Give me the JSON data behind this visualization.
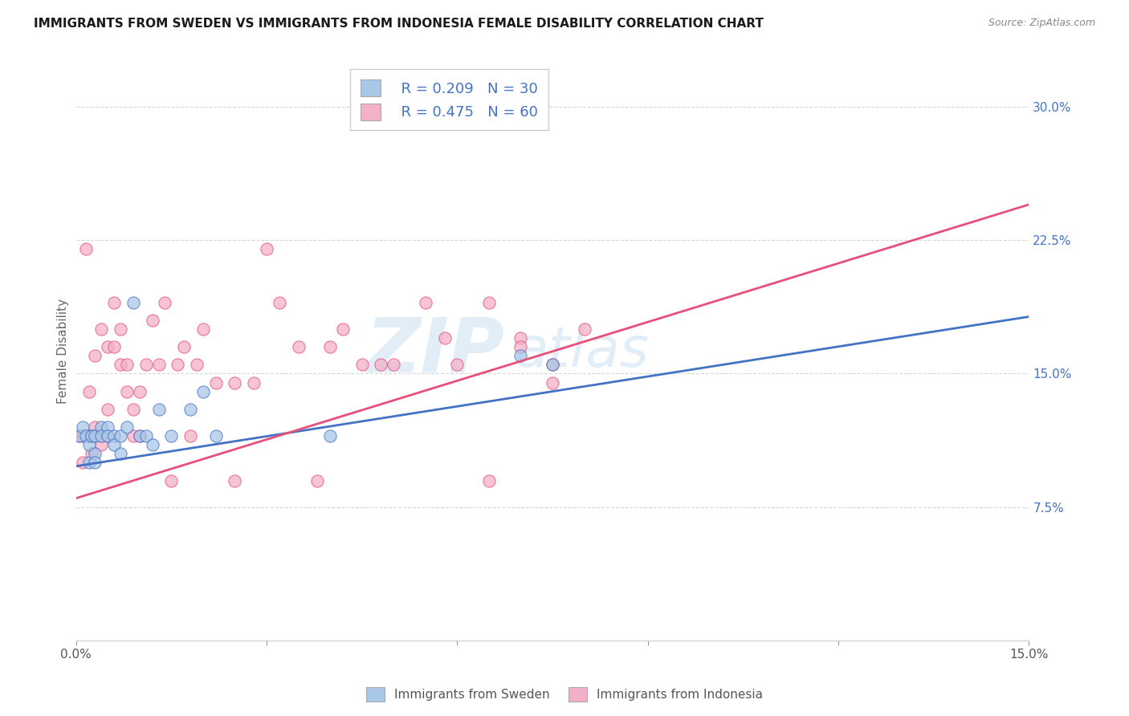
{
  "title": "IMMIGRANTS FROM SWEDEN VS IMMIGRANTS FROM INDONESIA FEMALE DISABILITY CORRELATION CHART",
  "source": "Source: ZipAtlas.com",
  "ylabel": "Female Disability",
  "ytick_labels": [
    "7.5%",
    "15.0%",
    "22.5%",
    "30.0%"
  ],
  "ytick_values": [
    0.075,
    0.15,
    0.225,
    0.3
  ],
  "xlim": [
    0.0,
    0.15
  ],
  "ylim": [
    0.0,
    0.325
  ],
  "legend_sweden_R": "R = 0.209",
  "legend_sweden_N": "N = 30",
  "legend_indonesia_R": "R = 0.475",
  "legend_indonesia_N": "N = 60",
  "color_sweden": "#a8c8e8",
  "color_indonesia": "#f4b0c8",
  "line_color_sweden": "#4472c4",
  "line_color_indonesia": "#e8507a",
  "watermark_zip": "ZIP",
  "watermark_atlas": "atlas",
  "sweden_x": [
    0.0005,
    0.001,
    0.0015,
    0.002,
    0.002,
    0.0025,
    0.003,
    0.003,
    0.003,
    0.004,
    0.004,
    0.005,
    0.005,
    0.006,
    0.006,
    0.007,
    0.007,
    0.008,
    0.009,
    0.01,
    0.011,
    0.012,
    0.013,
    0.015,
    0.018,
    0.02,
    0.022,
    0.04,
    0.07,
    0.075
  ],
  "sweden_y": [
    0.115,
    0.12,
    0.115,
    0.11,
    0.1,
    0.115,
    0.115,
    0.105,
    0.1,
    0.12,
    0.115,
    0.12,
    0.115,
    0.115,
    0.11,
    0.115,
    0.105,
    0.12,
    0.19,
    0.115,
    0.115,
    0.11,
    0.13,
    0.115,
    0.13,
    0.14,
    0.115,
    0.115,
    0.16,
    0.155
  ],
  "indonesia_x": [
    0.0005,
    0.001,
    0.001,
    0.0015,
    0.002,
    0.002,
    0.002,
    0.0025,
    0.003,
    0.003,
    0.003,
    0.004,
    0.004,
    0.004,
    0.005,
    0.005,
    0.005,
    0.006,
    0.006,
    0.007,
    0.007,
    0.008,
    0.008,
    0.009,
    0.009,
    0.01,
    0.01,
    0.011,
    0.012,
    0.013,
    0.014,
    0.015,
    0.016,
    0.017,
    0.018,
    0.019,
    0.02,
    0.022,
    0.025,
    0.025,
    0.028,
    0.03,
    0.032,
    0.035,
    0.038,
    0.04,
    0.042,
    0.045,
    0.048,
    0.05,
    0.055,
    0.058,
    0.06,
    0.065,
    0.065,
    0.07,
    0.07,
    0.075,
    0.075,
    0.08
  ],
  "indonesia_y": [
    0.115,
    0.1,
    0.115,
    0.22,
    0.115,
    0.115,
    0.14,
    0.105,
    0.12,
    0.16,
    0.115,
    0.115,
    0.175,
    0.11,
    0.165,
    0.13,
    0.115,
    0.19,
    0.165,
    0.155,
    0.175,
    0.14,
    0.155,
    0.115,
    0.13,
    0.115,
    0.14,
    0.155,
    0.18,
    0.155,
    0.19,
    0.09,
    0.155,
    0.165,
    0.115,
    0.155,
    0.175,
    0.145,
    0.145,
    0.09,
    0.145,
    0.22,
    0.19,
    0.165,
    0.09,
    0.165,
    0.175,
    0.155,
    0.155,
    0.155,
    0.19,
    0.17,
    0.155,
    0.09,
    0.19,
    0.17,
    0.165,
    0.155,
    0.145,
    0.175
  ],
  "sweden_line_x0": 0.0,
  "sweden_line_y0": 0.098,
  "sweden_line_x1": 0.15,
  "sweden_line_y1": 0.182,
  "indonesia_line_x0": 0.0,
  "indonesia_line_y0": 0.08,
  "indonesia_line_x1": 0.15,
  "indonesia_line_y1": 0.245
}
